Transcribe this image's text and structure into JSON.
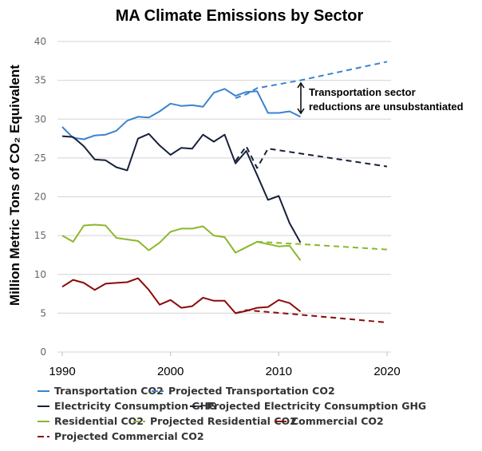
{
  "chart_data": {
    "type": "line",
    "title": "MA Climate Emissions by Sector",
    "xlabel": "",
    "ylabel": "Million Metric Tons of CO₂ Equivalent",
    "xlim": [
      1990,
      2020
    ],
    "ylim": [
      0,
      40
    ],
    "xticks": [
      1990,
      2000,
      2010,
      2020
    ],
    "yticks": [
      0,
      5,
      10,
      15,
      20,
      25,
      30,
      35,
      40
    ],
    "grid": "horizontal",
    "legend_position": "bottom",
    "series": [
      {
        "name": "Transportation CO2",
        "color": "#3a83d0",
        "style": "solid",
        "x": [
          1990,
          1991,
          1992,
          1993,
          1994,
          1995,
          1996,
          1997,
          1998,
          1999,
          2000,
          2001,
          2002,
          2003,
          2004,
          2005,
          2006,
          2007,
          2008,
          2009,
          2010,
          2011,
          2012
        ],
        "y": [
          29.0,
          27.6,
          27.4,
          27.9,
          28.0,
          28.5,
          29.8,
          30.3,
          30.2,
          31.0,
          32.0,
          31.7,
          31.8,
          31.6,
          33.4,
          33.9,
          33.0,
          33.5,
          33.6,
          30.8,
          30.8,
          31.0,
          30.3
        ]
      },
      {
        "name": "Projected Transportation CO2",
        "color": "#3a83d0",
        "style": "dashed",
        "x": [
          2006,
          2007,
          2008,
          2012,
          2020
        ],
        "y": [
          32.7,
          33.2,
          34.0,
          35.0,
          37.4
        ]
      },
      {
        "name": "Electricity Consumption GHG",
        "color": "#16213a",
        "style": "solid",
        "x": [
          1990,
          1991,
          1992,
          1993,
          1994,
          1995,
          1996,
          1997,
          1998,
          1999,
          2000,
          2001,
          2002,
          2003,
          2004,
          2005,
          2006,
          2007,
          2008,
          2009,
          2010,
          2011,
          2012
        ],
        "y": [
          27.8,
          27.7,
          26.5,
          24.8,
          24.7,
          23.8,
          23.4,
          27.5,
          28.1,
          26.6,
          25.4,
          26.3,
          26.2,
          28.0,
          27.1,
          28.0,
          24.3,
          25.9,
          22.8,
          19.6,
          20.1,
          16.6,
          14.1
        ]
      },
      {
        "name": "Projected Electricity Consumption GHG",
        "color": "#16213a",
        "style": "dashed",
        "x": [
          2006,
          2007,
          2008,
          2009,
          2020
        ],
        "y": [
          24.6,
          26.5,
          23.7,
          26.2,
          23.9
        ]
      },
      {
        "name": "Residential CO2",
        "color": "#8ab82a",
        "style": "solid",
        "x": [
          1990,
          1991,
          1992,
          1993,
          1994,
          1995,
          1996,
          1997,
          1998,
          1999,
          2000,
          2001,
          2002,
          2003,
          2004,
          2005,
          2006,
          2007,
          2008,
          2009,
          2010,
          2011,
          2012
        ],
        "y": [
          15.0,
          14.2,
          16.3,
          16.4,
          16.3,
          14.7,
          14.5,
          14.3,
          13.1,
          14.1,
          15.5,
          15.9,
          15.9,
          16.2,
          15.0,
          14.8,
          12.8,
          13.5,
          14.2,
          13.9,
          13.6,
          13.7,
          11.8
        ]
      },
      {
        "name": "Projected Residential CO2",
        "color": "#8ab82a",
        "style": "dashed",
        "x": [
          2008,
          2012,
          2020
        ],
        "y": [
          14.2,
          13.9,
          13.2
        ]
      },
      {
        "name": "Commercial CO2",
        "color": "#8b0a0a",
        "style": "solid",
        "x": [
          1990,
          1991,
          1992,
          1993,
          1994,
          1995,
          1996,
          1997,
          1998,
          1999,
          2000,
          2001,
          2002,
          2003,
          2004,
          2005,
          2006,
          2007,
          2008,
          2009,
          2010,
          2011,
          2012
        ],
        "y": [
          8.4,
          9.3,
          8.9,
          8.0,
          8.8,
          8.9,
          9.0,
          9.5,
          8.0,
          6.1,
          6.7,
          5.7,
          5.9,
          7.0,
          6.6,
          6.6,
          5.0,
          5.3,
          5.7,
          5.8,
          6.7,
          6.3,
          5.2
        ]
      },
      {
        "name": "Projected Commercial CO2",
        "color": "#8b0a0a",
        "style": "dashed",
        "x": [
          2006,
          2007,
          2012,
          2020
        ],
        "y": [
          5.0,
          5.4,
          4.8,
          3.8
        ]
      }
    ],
    "annotation": {
      "lines": [
        "Transportation sector",
        "reductions are unsubstantiated"
      ],
      "arrow": "double-headed vertical arrow"
    }
  }
}
